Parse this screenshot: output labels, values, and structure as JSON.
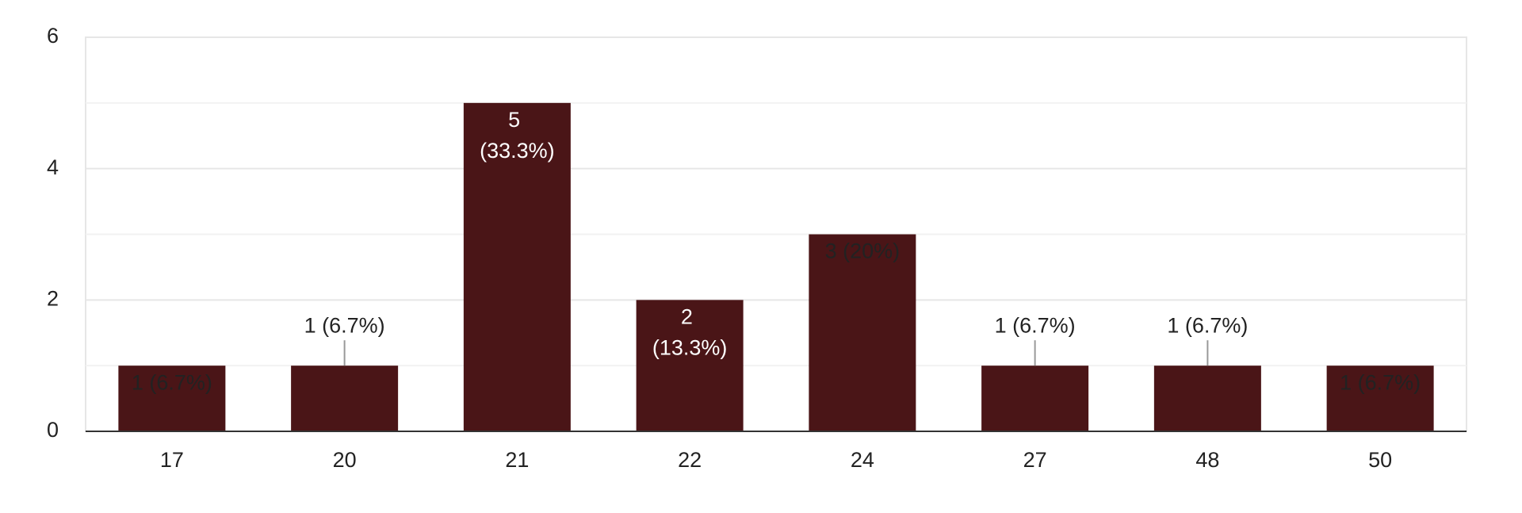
{
  "chart_data": {
    "type": "bar",
    "categories": [
      "17",
      "20",
      "21",
      "22",
      "24",
      "27",
      "48",
      "50"
    ],
    "values": [
      1,
      1,
      5,
      2,
      3,
      1,
      1,
      1
    ],
    "value_labels": [
      "1 (6.7%)",
      "1 (6.7%)",
      "5 (33.3%)",
      "2 (13.3%)",
      "3 (20%)",
      "1 (6.7%)",
      "1 (6.7%)",
      "1 (6.7%)"
    ],
    "color": "#4a1517",
    "ylim": [
      0,
      6
    ],
    "yticks": [
      0,
      2,
      4,
      6
    ],
    "grid": true
  }
}
